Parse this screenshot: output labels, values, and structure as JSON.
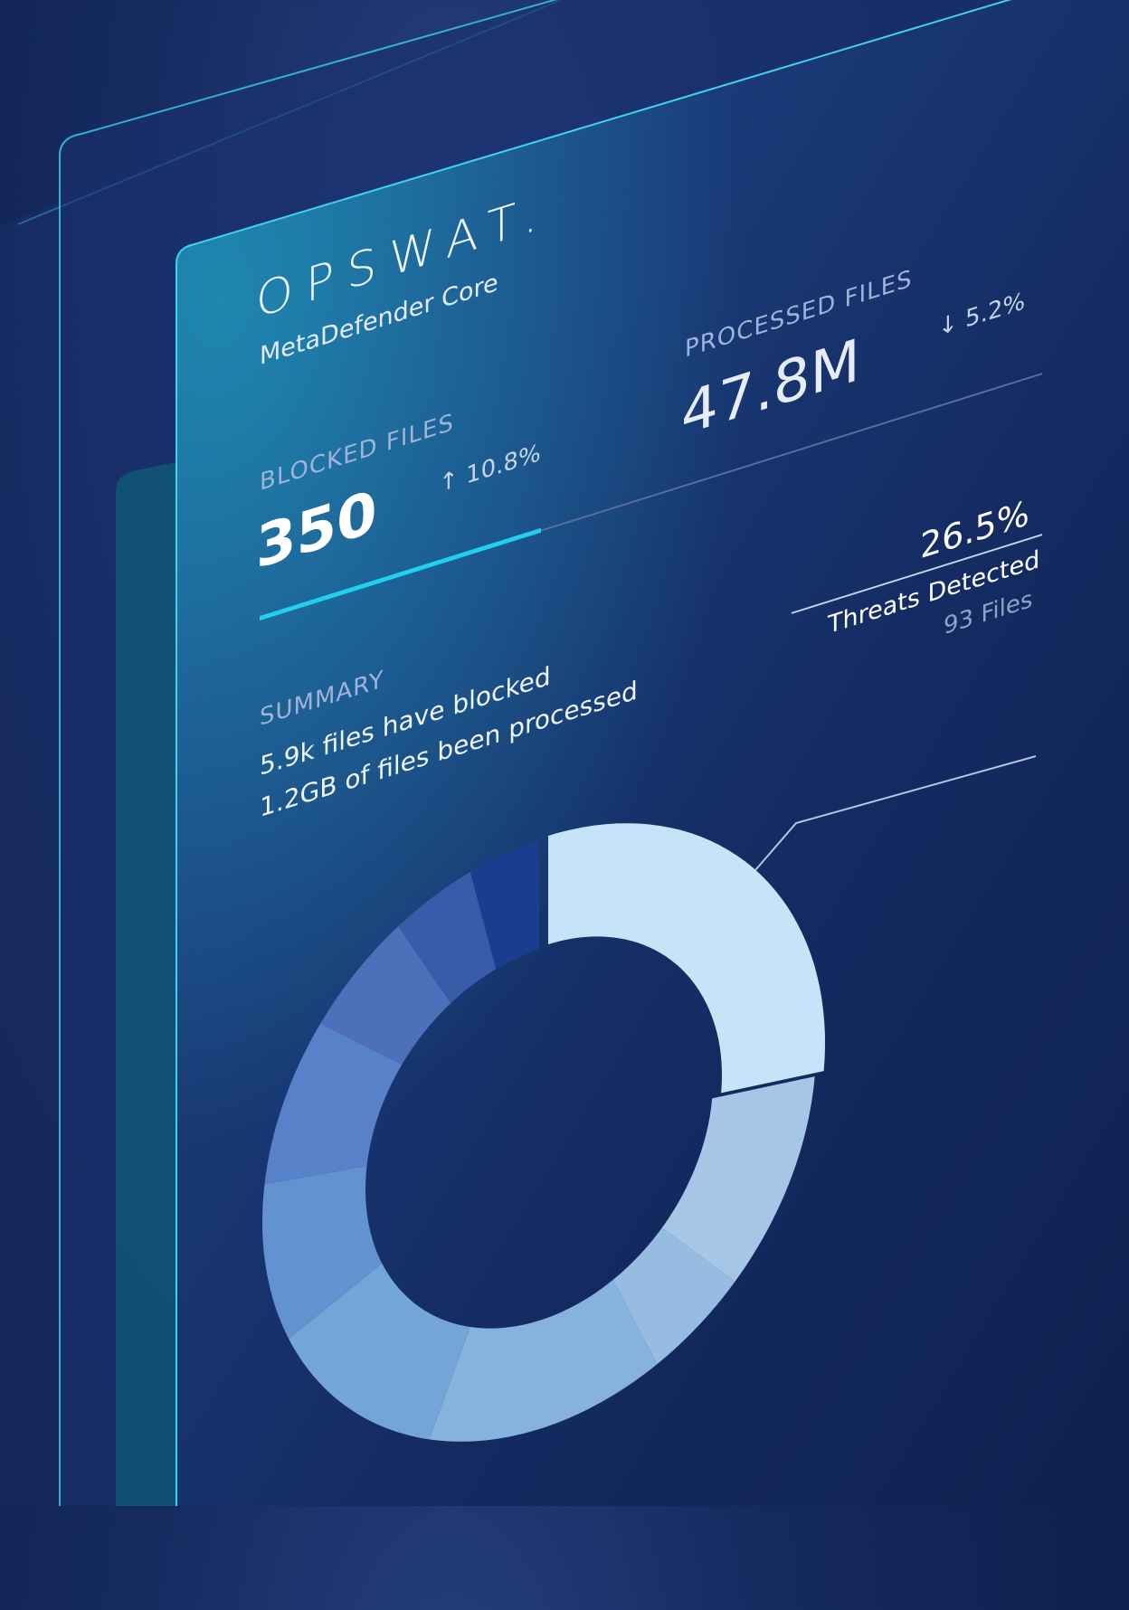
{
  "brand": {
    "logo_text": "OPSWAT.",
    "product_name": "MetaDefender Core"
  },
  "stats": {
    "blocked": {
      "label": "BLOCKED FILES",
      "value": "350",
      "change": "↑ 10.8%",
      "direction": "up"
    },
    "processed": {
      "label": "PROCESSED FILES",
      "value": "47.8M",
      "change": "↓ 5.2%",
      "direction": "down"
    },
    "progress_fraction": 0.36
  },
  "summary": {
    "label": "SUMMARY",
    "lines": [
      "5.9k files have blocked",
      "1.2GB of files been processed"
    ]
  },
  "callout": {
    "percent": "26.5%",
    "label": "Threats Detected",
    "files": "93 Files"
  },
  "colors": {
    "accent": "#1fd1ee",
    "panel_border": "#35c8e8"
  },
  "chart_data": {
    "type": "pie",
    "donut": true,
    "slices": [
      {
        "value": 26.5,
        "color": "#c6e4f8"
      },
      {
        "value": 11.0,
        "color": "#a6c6e6"
      },
      {
        "value": 5.5,
        "color": "#97bce2"
      },
      {
        "value": 13.5,
        "color": "#86b2de"
      },
      {
        "value": 11.5,
        "color": "#74a5d8"
      },
      {
        "value": 9.0,
        "color": "#6292cf"
      },
      {
        "value": 8.5,
        "color": "#5781c8"
      },
      {
        "value": 6.0,
        "color": "#4e6fba"
      },
      {
        "value": 4.5,
        "color": "#3a5ba8"
      },
      {
        "value": 4.0,
        "color": "#1c3d8f"
      }
    ]
  }
}
